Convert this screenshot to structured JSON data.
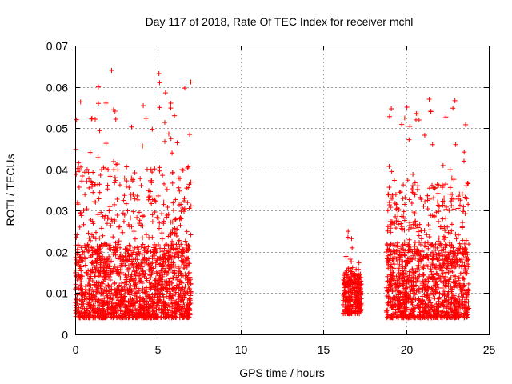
{
  "chart_data": {
    "type": "scatter",
    "title": "Day 117 of 2018, Rate Of TEC Index for receiver mchl",
    "xlabel": "GPS time / hours",
    "ylabel": "ROTI / TECUs",
    "xlim": [
      0,
      25
    ],
    "ylim": [
      0,
      0.07
    ],
    "x_ticks": [
      0,
      5,
      10,
      15,
      20,
      25
    ],
    "x_tick_labels": [
      "0",
      "5",
      "10",
      "15",
      "20",
      "25"
    ],
    "y_ticks": [
      0,
      0.01,
      0.02,
      0.03,
      0.04,
      0.05,
      0.06,
      0.07
    ],
    "y_tick_labels": [
      "0",
      "0.01",
      "0.02",
      "0.03",
      "0.04",
      "0.05",
      "0.06",
      "0.07"
    ],
    "grid": true,
    "marker": "+",
    "color": "#ff0000",
    "series": [
      {
        "name": "ROTI",
        "clusters": [
          {
            "x_range": [
              0.0,
              7.0
            ],
            "typical_range": [
              0.004,
              0.022
            ],
            "max": 0.064
          },
          {
            "x_range": [
              16.2,
              17.3
            ],
            "typical_range": [
              0.005,
              0.015
            ],
            "max": 0.025
          },
          {
            "x_range": [
              18.8,
              23.8
            ],
            "typical_range": [
              0.004,
              0.022
            ],
            "max": 0.057
          }
        ],
        "notable_points": [
          {
            "x": 2.2,
            "y": 0.064
          },
          {
            "x": 1.4,
            "y": 0.06
          },
          {
            "x": 5.1,
            "y": 0.061
          },
          {
            "x": 1.4,
            "y": 0.056
          },
          {
            "x": 5.1,
            "y": 0.055
          },
          {
            "x": 6.0,
            "y": 0.053
          },
          {
            "x": 21.4,
            "y": 0.057
          },
          {
            "x": 21.5,
            "y": 0.054
          },
          {
            "x": 20.6,
            "y": 0.052
          },
          {
            "x": 21.6,
            "y": 0.046
          },
          {
            "x": 23.0,
            "y": 0.046
          },
          {
            "x": 23.5,
            "y": 0.042
          },
          {
            "x": 16.5,
            "y": 0.025
          },
          {
            "x": 18.9,
            "y": 0.03
          }
        ]
      }
    ]
  }
}
